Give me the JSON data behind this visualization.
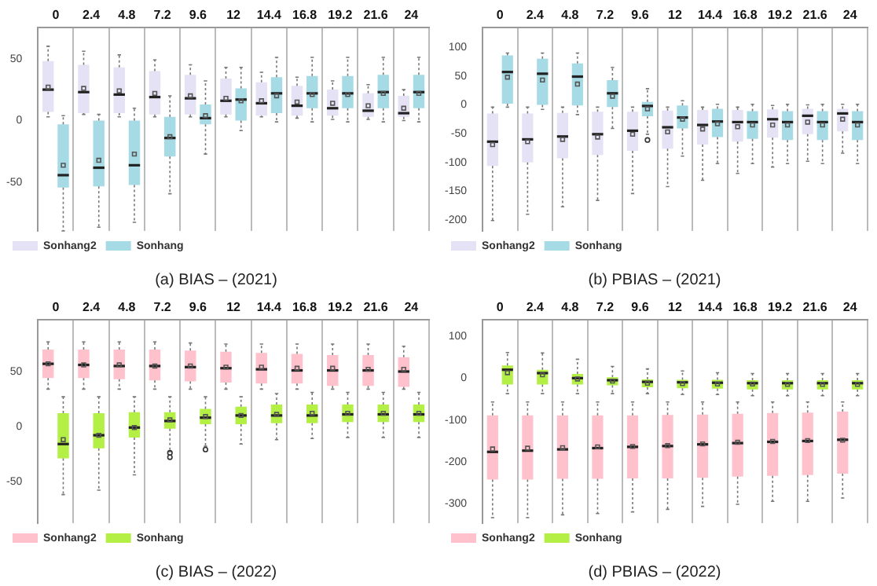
{
  "chart_data": [
    {
      "type": "box",
      "title": "(a) BIAS – (2021)",
      "categories": [
        "0",
        "2.4",
        "4.8",
        "7.2",
        "9.6",
        "12",
        "14.4",
        "16.8",
        "19.2",
        "21.6",
        "24"
      ],
      "ylim": [
        -89,
        75
      ],
      "yticks": [
        -50,
        0,
        50
      ],
      "grid": "x",
      "legend": "bottom",
      "series": [
        {
          "name": "Sonhang2",
          "color": "#e4e2f4",
          "boxes": [
            {
              "low": 3,
              "q1": 7,
              "median": 25,
              "q3": 48,
              "high": 60,
              "mean": 27
            },
            {
              "low": 5,
              "q1": 6,
              "median": 23,
              "q3": 45,
              "high": 56,
              "mean": 26
            },
            {
              "low": 3,
              "q1": 6,
              "median": 21,
              "q3": 43,
              "high": 53,
              "mean": 24
            },
            {
              "low": 3,
              "q1": 5,
              "median": 19,
              "q3": 40,
              "high": 49,
              "mean": 22
            },
            {
              "low": 3,
              "q1": 5,
              "median": 18,
              "q3": 37,
              "high": 45,
              "mean": 20
            },
            {
              "low": 3,
              "q1": 5,
              "median": 16,
              "q3": 34,
              "high": 43,
              "mean": 18
            },
            {
              "low": 3,
              "q1": 4,
              "median": 14,
              "q3": 31,
              "high": 39,
              "mean": 16
            },
            {
              "low": 2,
              "q1": 4,
              "median": 12,
              "q3": 28,
              "high": 35,
              "mean": 15
            },
            {
              "low": 1,
              "q1": 4,
              "median": 10,
              "q3": 25,
              "high": 32,
              "mean": 14
            },
            {
              "low": 1,
              "q1": 3,
              "median": 8,
              "q3": 22,
              "high": 29,
              "mean": 12
            },
            {
              "low": 0,
              "q1": 3,
              "median": 6,
              "q3": 20,
              "high": 25,
              "mean": 10
            }
          ]
        },
        {
          "name": "Sonhang",
          "color": "#a6dbe5",
          "boxes": [
            {
              "low": -89,
              "q1": -54,
              "median": -44,
              "q3": -3,
              "high": 4,
              "mean": -36
            },
            {
              "low": -86,
              "q1": -53,
              "median": -38,
              "q3": 0,
              "high": 5,
              "mean": -32
            },
            {
              "low": -82,
              "q1": -52,
              "median": -36,
              "q3": 0,
              "high": 10,
              "mean": -27
            },
            {
              "low": -59,
              "q1": -29,
              "median": -14,
              "q3": 3,
              "high": 20,
              "mean": -13
            },
            {
              "low": -27,
              "q1": -3,
              "median": 2,
              "q3": 13,
              "high": 32,
              "mean": 4
            },
            {
              "low": -8,
              "q1": 0,
              "median": 17,
              "q3": 26,
              "high": 43,
              "mean": 16
            },
            {
              "low": -1,
              "q1": 6,
              "median": 22,
              "q3": 35,
              "high": 51,
              "mean": 20
            },
            {
              "low": -1,
              "q1": 10,
              "median": 22,
              "q3": 36,
              "high": 51,
              "mean": 21
            },
            {
              "low": -1,
              "q1": 10,
              "median": 22,
              "q3": 36,
              "high": 51,
              "mean": 21
            },
            {
              "low": -1,
              "q1": 10,
              "median": 23,
              "q3": 37,
              "high": 51,
              "mean": 22
            },
            {
              "low": -1,
              "q1": 10,
              "median": 23,
              "q3": 37,
              "high": 51,
              "mean": 22
            }
          ]
        }
      ]
    },
    {
      "type": "box",
      "title": "(b) PBIAS – (2021)",
      "categories": [
        "0",
        "2.4",
        "4.8",
        "7.2",
        "9.6",
        "12",
        "14.4",
        "16.8",
        "19.2",
        "21.6",
        "24"
      ],
      "ylim": [
        -219,
        134
      ],
      "yticks": [
        -200,
        -150,
        -100,
        -50,
        0,
        50,
        100
      ],
      "grid": "x",
      "legend": "bottom",
      "series": [
        {
          "name": "Sonhang2",
          "color": "#e4e2f4",
          "boxes": [
            {
              "low": -201,
              "q1": -106,
              "median": -64,
              "q3": -15,
              "high": -4,
              "mean": -69
            },
            {
              "low": -190,
              "q1": -100,
              "median": -60,
              "q3": -15,
              "high": -4,
              "mean": -64
            },
            {
              "low": -177,
              "q1": -93,
              "median": -55,
              "q3": -14,
              "high": -4,
              "mean": -60
            },
            {
              "low": -166,
              "q1": -87,
              "median": -51,
              "q3": -12,
              "high": -4,
              "mean": -56
            },
            {
              "low": -154,
              "q1": -80,
              "median": -45,
              "q3": -12,
              "high": -4,
              "mean": -51
            },
            {
              "low": -142,
              "q1": -76,
              "median": -39,
              "q3": -10,
              "high": -4,
              "mean": -47
            },
            {
              "low": -131,
              "q1": -69,
              "median": -35,
              "q3": -9,
              "high": -4,
              "mean": -42
            },
            {
              "low": -119,
              "q1": -64,
              "median": -30,
              "q3": -9,
              "high": -4,
              "mean": -38
            },
            {
              "low": -108,
              "q1": -57,
              "median": -25,
              "q3": -8,
              "high": -1,
              "mean": -35
            },
            {
              "low": -98,
              "q1": -51,
              "median": -19,
              "q3": -7,
              "high": 0,
              "mean": -30
            },
            {
              "low": -84,
              "q1": -46,
              "median": -15,
              "q3": -7,
              "high": 1,
              "mean": -25
            }
          ]
        },
        {
          "name": "Sonhang",
          "color": "#a6dbe5",
          "boxes": [
            {
              "low": -4,
              "q1": 2,
              "median": 57,
              "q3": 86,
              "high": 90,
              "mean": 48
            },
            {
              "low": -8,
              "q1": 0,
              "median": 54,
              "q3": 80,
              "high": 90,
              "mean": 43
            },
            {
              "low": -17,
              "q1": -1,
              "median": 49,
              "q3": 72,
              "high": 90,
              "mean": 36
            },
            {
              "low": -41,
              "q1": -4,
              "median": 20,
              "q3": 43,
              "high": 65,
              "mean": 15
            },
            {
              "low": -51,
              "q1": -20,
              "median": -2,
              "q3": 5,
              "high": 28,
              "mean": -7,
              "outliers": [
                -61
              ]
            },
            {
              "low": -89,
              "q1": -41,
              "median": -22,
              "q3": -1,
              "high": 7,
              "mean": -25
            },
            {
              "low": -102,
              "q1": -56,
              "median": -29,
              "q3": -7,
              "high": 1,
              "mean": -33
            },
            {
              "low": -102,
              "q1": -59,
              "median": -30,
              "q3": -11,
              "high": 1,
              "mean": -35
            },
            {
              "low": -102,
              "q1": -61,
              "median": -30,
              "q3": -11,
              "high": 1,
              "mean": -35
            },
            {
              "low": -102,
              "q1": -61,
              "median": -30,
              "q3": -11,
              "high": 1,
              "mean": -35
            },
            {
              "low": -102,
              "q1": -61,
              "median": -30,
              "q3": -11,
              "high": 1,
              "mean": -35
            }
          ]
        }
      ]
    },
    {
      "type": "box",
      "title": "(c) BIAS – (2022)",
      "categories": [
        "0",
        "2.4",
        "4.8",
        "7.2",
        "9.6",
        "12",
        "14.4",
        "16.8",
        "19.2",
        "21.6",
        "24"
      ],
      "ylim": [
        -88,
        97
      ],
      "yticks": [
        -50,
        0,
        50
      ],
      "grid": "x",
      "legend": "bottom",
      "series": [
        {
          "name": "Sonhang2",
          "color": "#ffc1cc",
          "boxes": [
            {
              "low": 34,
              "q1": 44,
              "median": 57,
              "q3": 70,
              "high": 77,
              "mean": 57
            },
            {
              "low": 34,
              "q1": 44,
              "median": 56,
              "q3": 70,
              "high": 77,
              "mean": 56
            },
            {
              "low": 34,
              "q1": 43,
              "median": 55,
              "q3": 70,
              "high": 77,
              "mean": 56
            },
            {
              "low": 34,
              "q1": 42,
              "median": 55,
              "q3": 70,
              "high": 77,
              "mean": 55
            },
            {
              "low": 34,
              "q1": 41,
              "median": 54,
              "q3": 69,
              "high": 76,
              "mean": 55
            },
            {
              "low": 34,
              "q1": 40,
              "median": 53,
              "q3": 68,
              "high": 75,
              "mean": 54
            },
            {
              "low": 34,
              "q1": 39,
              "median": 52,
              "q3": 67,
              "high": 75,
              "mean": 54
            },
            {
              "low": 34,
              "q1": 39,
              "median": 51,
              "q3": 66,
              "high": 75,
              "mean": 53
            },
            {
              "low": 34,
              "q1": 37,
              "median": 51,
              "q3": 65,
              "high": 75,
              "mean": 53
            },
            {
              "low": 34,
              "q1": 37,
              "median": 51,
              "q3": 65,
              "high": 75,
              "mean": 52
            },
            {
              "low": 34,
              "q1": 36,
              "median": 50,
              "q3": 63,
              "high": 73,
              "mean": 52
            }
          ]
        },
        {
          "name": "Sonhang",
          "color": "#b3ef45",
          "boxes": [
            {
              "low": -62,
              "q1": -29,
              "median": -16,
              "q3": 12,
              "high": 27,
              "mean": -12
            },
            {
              "low": -58,
              "q1": -20,
              "median": -8,
              "q3": 12,
              "high": 27,
              "mean": -8
            },
            {
              "low": -44,
              "q1": -10,
              "median": -1,
              "q3": 13,
              "high": 27,
              "mean": -1
            },
            {
              "low": -23,
              "q1": -2,
              "median": 5,
              "q3": 13,
              "high": 27,
              "mean": 6,
              "outliers": [
                -24,
                -28
              ]
            },
            {
              "low": -18,
              "q1": 2,
              "median": 8,
              "q3": 16,
              "high": 27,
              "mean": 9,
              "outliers": [
                -21
              ]
            },
            {
              "low": -16,
              "q1": 2,
              "median": 10,
              "q3": 18,
              "high": 27,
              "mean": 10
            },
            {
              "low": -12,
              "q1": 3,
              "median": 10,
              "q3": 20,
              "high": 30,
              "mean": 11
            },
            {
              "low": -11,
              "q1": 3,
              "median": 10,
              "q3": 20,
              "high": 31,
              "mean": 12
            },
            {
              "low": -10,
              "q1": 4,
              "median": 11,
              "q3": 20,
              "high": 31,
              "mean": 12
            },
            {
              "low": -10,
              "q1": 4,
              "median": 11,
              "q3": 20,
              "high": 31,
              "mean": 12
            },
            {
              "low": -10,
              "q1": 4,
              "median": 11,
              "q3": 20,
              "high": 31,
              "mean": 12
            }
          ]
        }
      ]
    },
    {
      "type": "box",
      "title": "(d) PBIAS – (2022)",
      "categories": [
        "0",
        "2.4",
        "4.8",
        "7.2",
        "9.6",
        "12",
        "14.4",
        "16.8",
        "19.2",
        "21.6",
        "24"
      ],
      "ylim": [
        -346,
        139
      ],
      "yticks": [
        -300,
        -200,
        -100,
        0,
        100
      ],
      "grid": "x",
      "legend": "bottom",
      "series": [
        {
          "name": "Sonhang2",
          "color": "#ffc1cc",
          "boxes": [
            {
              "low": -333,
              "q1": -242,
              "median": -176,
              "q3": -89,
              "high": -57,
              "mean": -169
            },
            {
              "low": -333,
              "q1": -242,
              "median": -173,
              "q3": -89,
              "high": -57,
              "mean": -167
            },
            {
              "low": -326,
              "q1": -240,
              "median": -170,
              "q3": -89,
              "high": -57,
              "mean": -166
            },
            {
              "low": -323,
              "q1": -240,
              "median": -167,
              "q3": -89,
              "high": -57,
              "mean": -164
            },
            {
              "low": -319,
              "q1": -239,
              "median": -164,
              "q3": -89,
              "high": -57,
              "mean": -163
            },
            {
              "low": -313,
              "q1": -239,
              "median": -162,
              "q3": -88,
              "high": -57,
              "mean": -161
            },
            {
              "low": -306,
              "q1": -238,
              "median": -158,
              "q3": -87,
              "high": -57,
              "mean": -157
            },
            {
              "low": -301,
              "q1": -235,
              "median": -155,
              "q3": -85,
              "high": -57,
              "mean": -153
            },
            {
              "low": -294,
              "q1": -233,
              "median": -152,
              "q3": -83,
              "high": -57,
              "mean": -151
            },
            {
              "low": -294,
              "q1": -231,
              "median": -150,
              "q3": -82,
              "high": -57,
              "mean": -149
            },
            {
              "low": -286,
              "q1": -228,
              "median": -147,
              "q3": -80,
              "high": -57,
              "mean": -148
            }
          ]
        },
        {
          "name": "Sonhang",
          "color": "#b3ef45",
          "boxes": [
            {
              "low": -37,
              "q1": -15,
              "median": 20,
              "q3": 30,
              "high": 61,
              "mean": 13
            },
            {
              "low": -37,
              "q1": -15,
              "median": 12,
              "q3": 20,
              "high": 60,
              "mean": 8
            },
            {
              "low": -37,
              "q1": -15,
              "median": 0,
              "q3": 10,
              "high": 45,
              "mean": -2
            },
            {
              "low": -37,
              "q1": -17,
              "median": -5,
              "q3": 2,
              "high": 28,
              "mean": -7
            },
            {
              "low": -37,
              "q1": -22,
              "median": -9,
              "q3": -3,
              "high": 22,
              "mean": -12
            },
            {
              "low": -39,
              "q1": -24,
              "median": -10,
              "q3": -4,
              "high": 17,
              "mean": -13
            },
            {
              "low": -39,
              "q1": -25,
              "median": -11,
              "q3": -4,
              "high": 13,
              "mean": -14
            },
            {
              "low": -42,
              "q1": -27,
              "median": -12,
              "q3": -5,
              "high": 11,
              "mean": -14
            },
            {
              "low": -42,
              "q1": -27,
              "median": -12,
              "q3": -5,
              "high": 11,
              "mean": -15
            },
            {
              "low": -42,
              "q1": -27,
              "median": -12,
              "q3": -5,
              "high": 11,
              "mean": -15
            },
            {
              "low": -42,
              "q1": -27,
              "median": -12,
              "q3": -5,
              "high": 11,
              "mean": -15
            }
          ]
        }
      ]
    }
  ]
}
